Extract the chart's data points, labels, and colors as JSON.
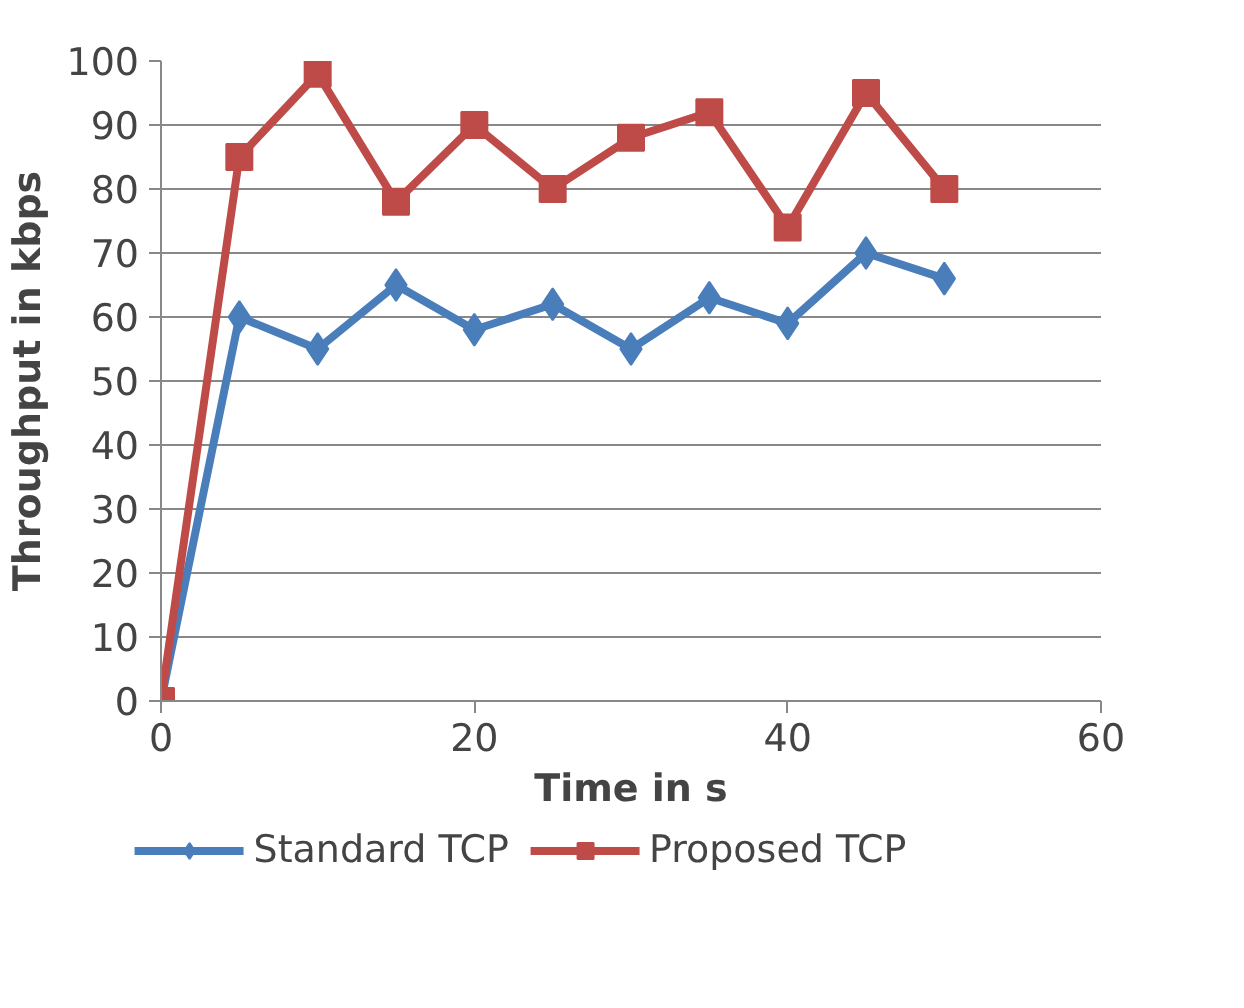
{
  "chart_data": {
    "type": "line",
    "xlabel": "Time in s",
    "ylabel": "Throughput in kbps",
    "x": [
      0,
      5,
      10,
      15,
      20,
      25,
      30,
      35,
      40,
      45,
      50
    ],
    "series": [
      {
        "name": "Standard TCP",
        "color": "#4a7ebb",
        "marker": "diamond",
        "values": [
          0,
          60,
          55,
          65,
          58,
          62,
          55,
          63,
          59,
          70,
          66
        ]
      },
      {
        "name": "Proposed TCP",
        "color": "#be4b48",
        "marker": "square",
        "values": [
          0,
          85,
          98,
          78,
          90,
          80,
          88,
          92,
          74,
          95,
          80
        ]
      }
    ],
    "xlim": [
      0,
      60
    ],
    "xticks": [
      0,
      20,
      40,
      60
    ],
    "ylim": [
      0,
      100
    ],
    "yticks": [
      0,
      10,
      20,
      30,
      40,
      50,
      60,
      70,
      80,
      90,
      100
    ],
    "grid": "y",
    "legend": "bottom",
    "line_style": "solid"
  }
}
